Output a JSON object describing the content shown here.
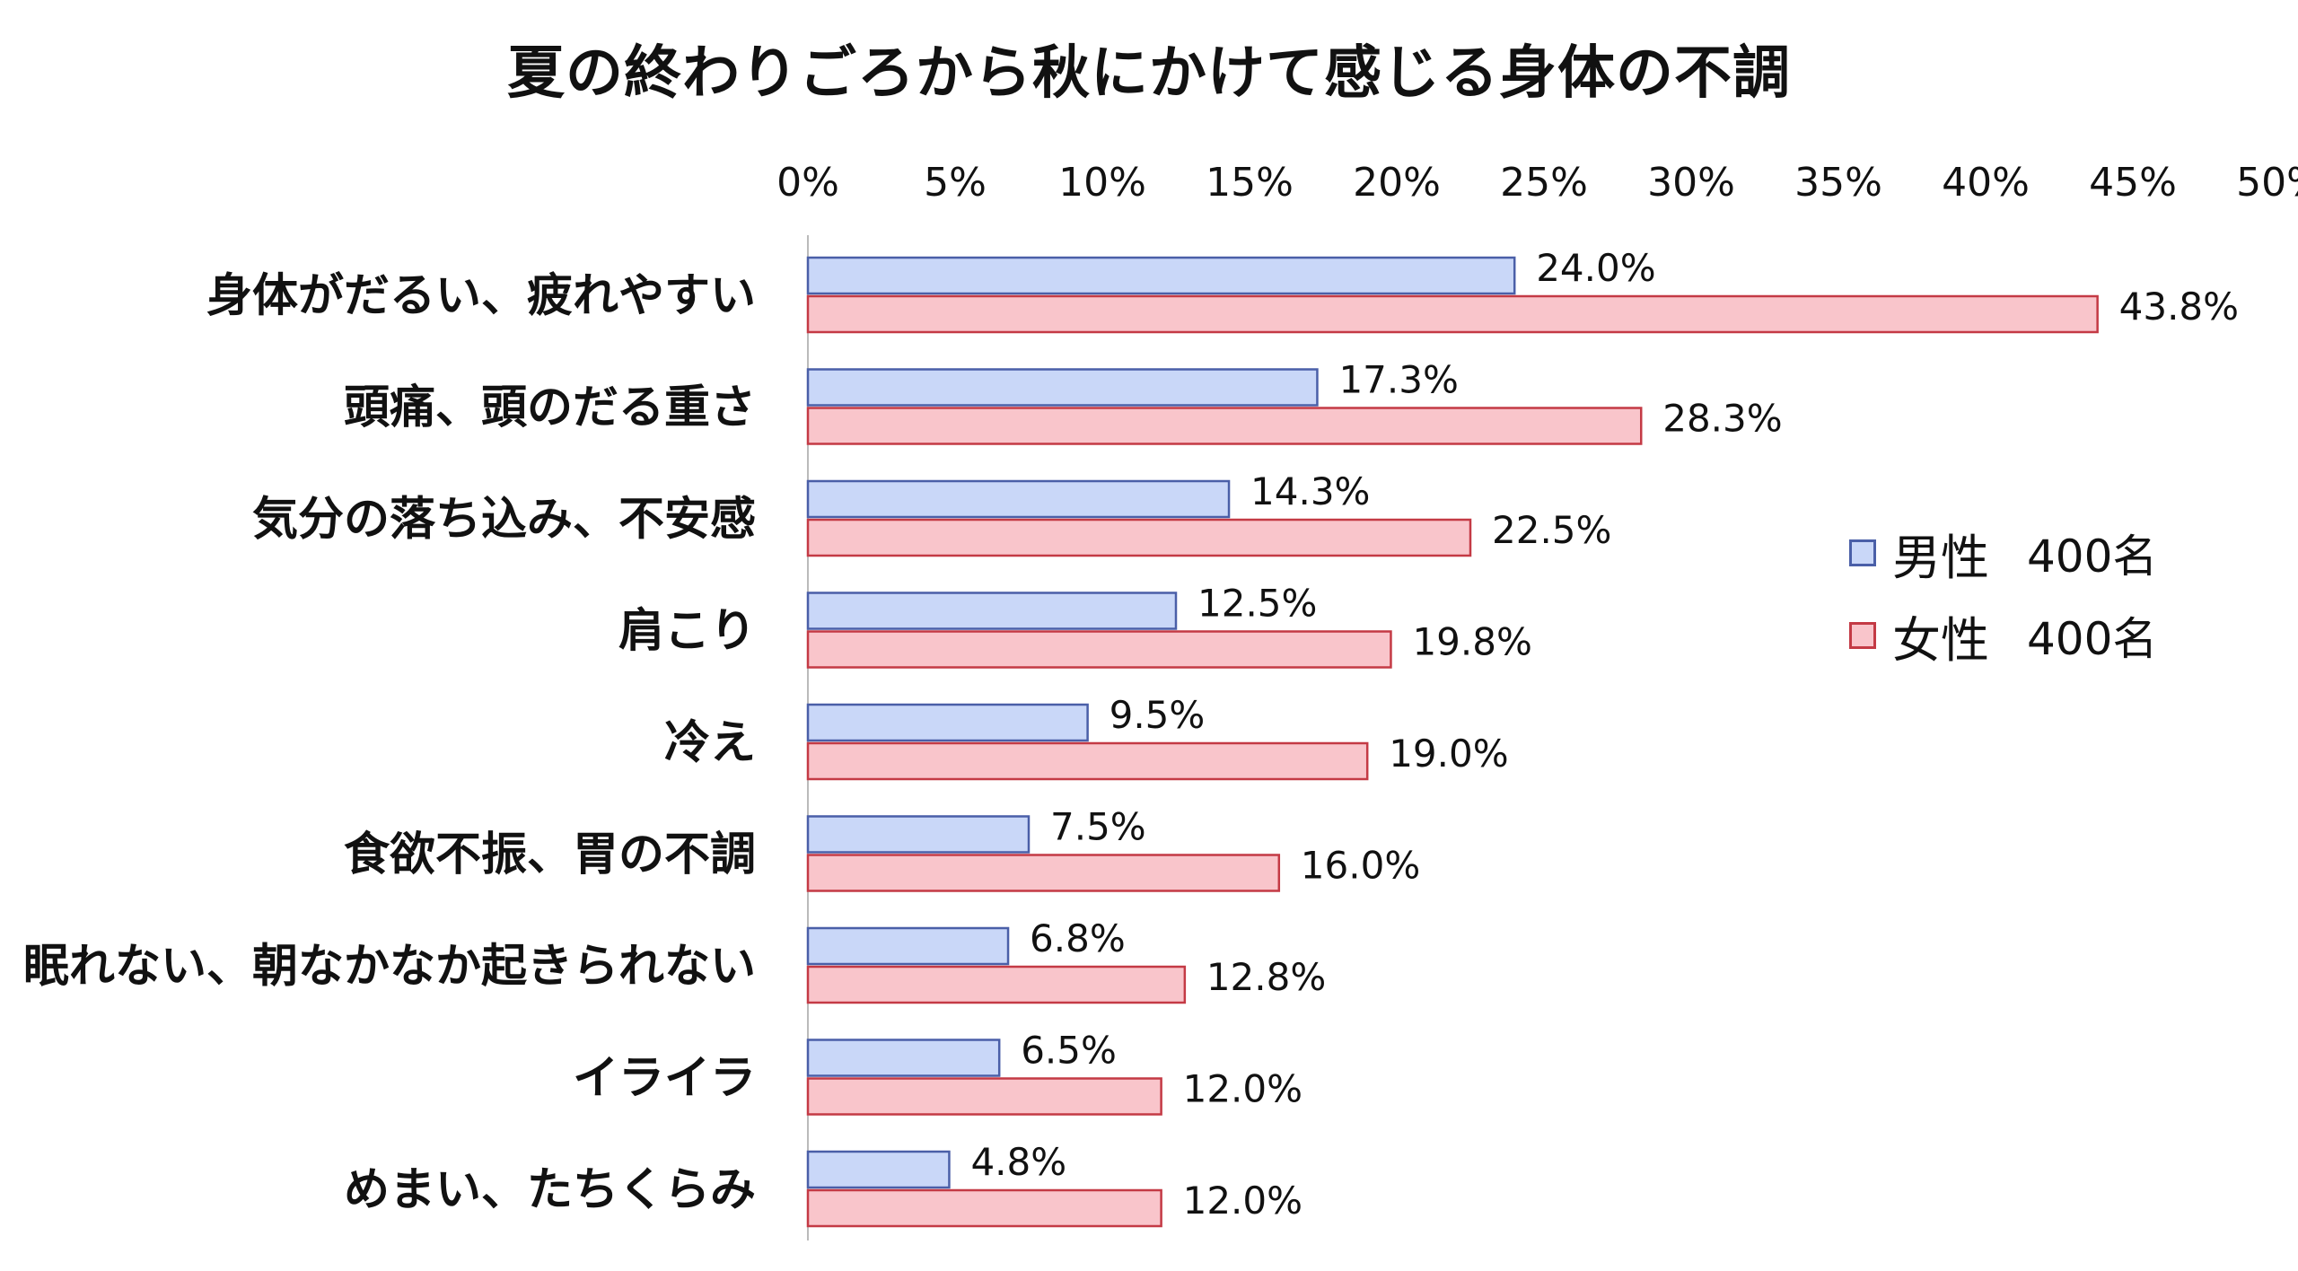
{
  "chart_data": {
    "type": "bar",
    "orientation": "horizontal",
    "title": "夏の終わりごろから秋にかけて感じる身体の不調",
    "categories": [
      "身体がだるい、疲れやすい",
      "頭痛、頭のだる重さ",
      "気分の落ち込み、不安感",
      "肩こり",
      "冷え",
      "食欲不振、胃の不調",
      "眠れない、朝なかなか起きられない",
      "イライラ",
      "めまい、たちくらみ"
    ],
    "series": [
      {
        "name": "男性",
        "count_label": "400名",
        "color": "#c9d7f8",
        "border": "#4a5fa8",
        "values": [
          24.0,
          17.3,
          14.3,
          12.5,
          9.5,
          7.5,
          6.8,
          6.5,
          4.8
        ]
      },
      {
        "name": "女性",
        "count_label": "400名",
        "color": "#f9c5cb",
        "border": "#c43a45",
        "values": [
          43.8,
          28.3,
          22.5,
          19.8,
          19.0,
          16.0,
          12.8,
          12.0,
          12.0
        ]
      }
    ],
    "xlim": [
      0,
      50
    ],
    "xticks": [
      0,
      5,
      10,
      15,
      20,
      25,
      30,
      35,
      40,
      45,
      50
    ],
    "tick_format": "%",
    "value_format": "0.0%",
    "xlabel": "",
    "ylabel": "",
    "grid": false,
    "legend_position": "right"
  }
}
